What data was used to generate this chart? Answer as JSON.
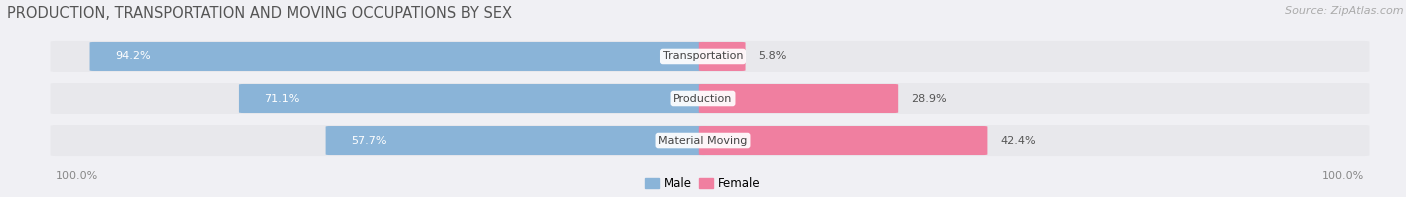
{
  "title": "PRODUCTION, TRANSPORTATION AND MOVING OCCUPATIONS BY SEX",
  "source": "Source: ZipAtlas.com",
  "categories": [
    "Transportation",
    "Production",
    "Material Moving"
  ],
  "male_pct": [
    94.2,
    71.1,
    57.7
  ],
  "female_pct": [
    5.8,
    28.9,
    42.4
  ],
  "male_color": "#8ab4d8",
  "female_color": "#f07fa0",
  "bar_bg_color": "#e8e8ec",
  "fig_bg_color": "#f0f0f4",
  "title_color": "#555555",
  "source_color": "#aaaaaa",
  "pct_label_color_male_inside": "#ffffff",
  "pct_label_color_male_outside": "#888888",
  "pct_label_color_female": "#555555",
  "cat_label_color": "#444444",
  "edge_label_color": "#888888",
  "title_fontsize": 10.5,
  "source_fontsize": 8,
  "bar_label_fontsize": 8,
  "cat_label_fontsize": 8,
  "edge_label_fontsize": 8,
  "left_label": "100.0%",
  "right_label": "100.0%",
  "legend_labels": [
    "Male",
    "Female"
  ]
}
